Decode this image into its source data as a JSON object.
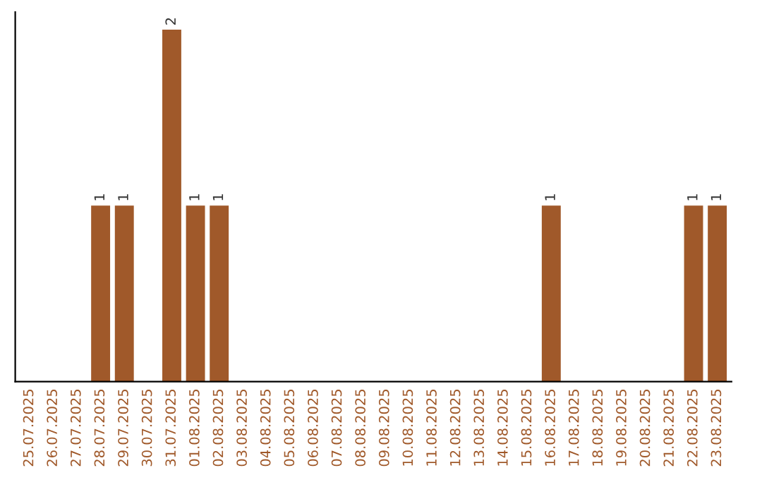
{
  "chart_data": {
    "type": "bar",
    "categories": [
      "25.07.2025",
      "26.07.2025",
      "27.07.2025",
      "28.07.2025",
      "29.07.2025",
      "30.07.2025",
      "31.07.2025",
      "01.08.2025",
      "02.08.2025",
      "03.08.2025",
      "04.08.2025",
      "05.08.2025",
      "06.08.2025",
      "07.08.2025",
      "08.08.2025",
      "09.08.2025",
      "10.08.2025",
      "11.08.2025",
      "12.08.2025",
      "13.08.2025",
      "14.08.2025",
      "15.08.2025",
      "16.08.2025",
      "17.08.2025",
      "18.08.2025",
      "19.08.2025",
      "20.08.2025",
      "21.08.2025",
      "22.08.2025",
      "23.08.2025"
    ],
    "values": [
      0,
      0,
      0,
      1,
      1,
      0,
      2,
      1,
      1,
      0,
      0,
      0,
      0,
      0,
      0,
      0,
      0,
      0,
      0,
      0,
      0,
      0,
      1,
      0,
      0,
      0,
      0,
      0,
      1,
      1
    ],
    "value_labels": [
      null,
      null,
      null,
      "1",
      "1",
      null,
      "2",
      "1",
      "1",
      null,
      null,
      null,
      null,
      null,
      null,
      null,
      null,
      null,
      null,
      null,
      null,
      null,
      "1",
      null,
      null,
      null,
      null,
      null,
      "1",
      "1"
    ],
    "color": "#a0592a",
    "tick_labels": "x",
    "grid": false,
    "legend": false
  }
}
